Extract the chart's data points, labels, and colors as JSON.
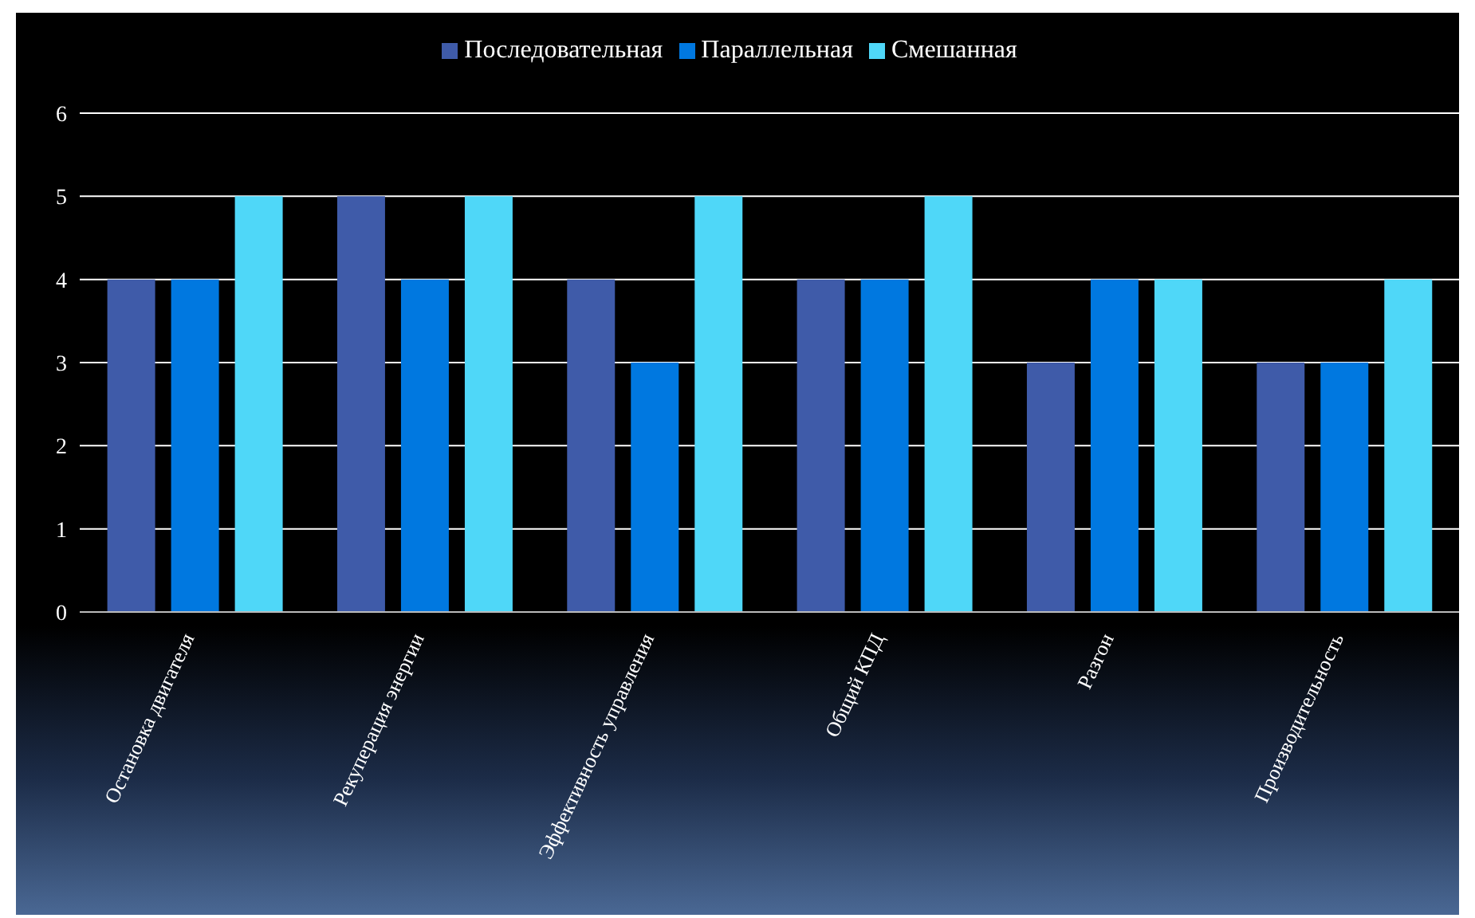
{
  "chart_data": {
    "type": "bar",
    "categories": [
      "Остановка двигателя",
      "Рекуперация энергии",
      "Эффективность управления",
      "Общий КПД",
      "Разгон",
      "Производительность"
    ],
    "series": [
      {
        "name": "Последовательная",
        "color": "#3f5ba9",
        "values": [
          4,
          5,
          4,
          4,
          3,
          3
        ]
      },
      {
        "name": "Параллельная",
        "color": "#0078e0",
        "values": [
          4,
          4,
          3,
          4,
          4,
          3
        ]
      },
      {
        "name": "Смешанная",
        "color": "#4fd7f8",
        "values": [
          5,
          5,
          5,
          5,
          4,
          4
        ]
      }
    ],
    "ylim": [
      0,
      6
    ],
    "yticks": [
      0,
      1,
      2,
      3,
      4,
      5,
      6
    ],
    "grid": "y",
    "legend": "top"
  }
}
